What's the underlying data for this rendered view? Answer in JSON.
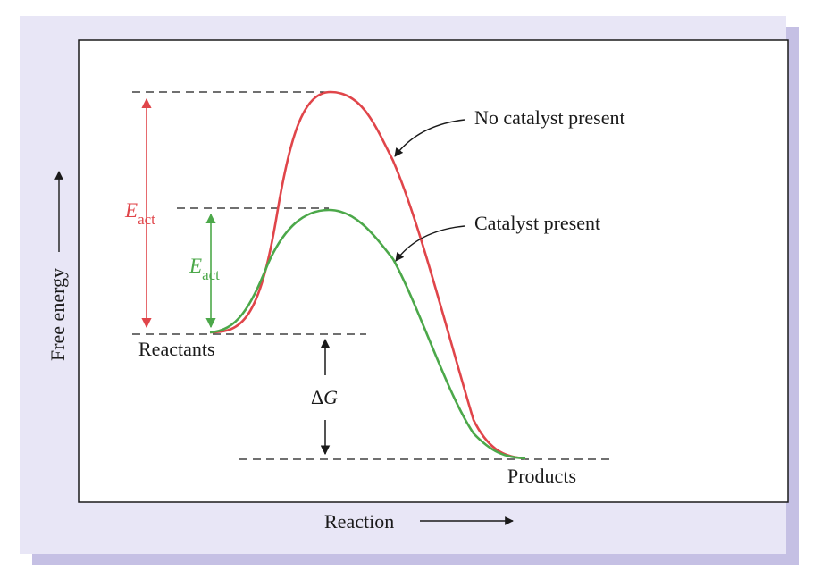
{
  "diagram": {
    "labels": {
      "no_catalyst": "No catalyst present",
      "catalyst": "Catalyst present",
      "reactants": "Reactants",
      "products": "Products",
      "x_axis": "Reaction",
      "y_axis": "Free energy",
      "eact_main": "E",
      "eact_sub": "act",
      "delta_g_symbol": "Δ",
      "delta_g_letter": "G"
    },
    "series": [
      {
        "name": "No catalyst present",
        "color": "#e0454a"
      },
      {
        "name": "Catalyst present",
        "color": "#4ca84a"
      }
    ],
    "colors": {
      "frame_shadow": "#c5c0e4",
      "frame_bg": "#e8e6f6",
      "panel_bg": "#ffffff",
      "axis": "#1a1a1a",
      "eact_uncatalyzed": "#e0454a",
      "eact_catalyzed": "#4ca84a"
    },
    "icons": [
      "arrow-right-icon",
      "arrow-up-icon",
      "double-arrow-icon"
    ]
  }
}
